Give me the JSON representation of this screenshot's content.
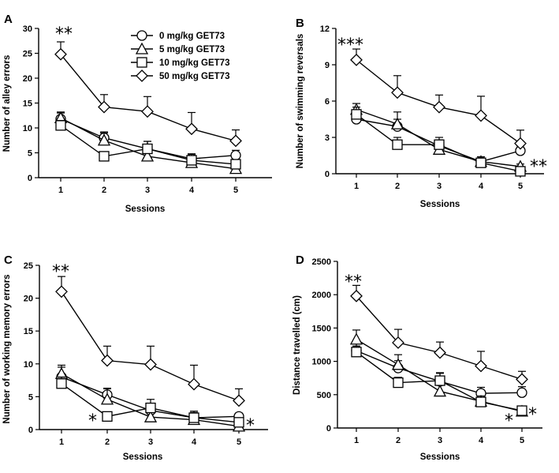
{
  "chart_data": [
    {
      "type": "line",
      "panel": "A",
      "title": "",
      "xlabel": "Sessions",
      "ylabel": "Number of alley errors",
      "categories": [
        "1",
        "2",
        "3",
        "4",
        "5"
      ],
      "ylim": [
        0,
        30
      ],
      "yticks": [
        "0",
        "5",
        "10",
        "15",
        "20",
        "25",
        "30"
      ],
      "legend": {
        "placement": "top-right",
        "entries": [
          {
            "label": "0 mg/kg GET73",
            "marker": "circle"
          },
          {
            "label": "5 mg/kg GET73",
            "marker": "triangle"
          },
          {
            "label": "10 mg/kg GET73",
            "marker": "square"
          },
          {
            "label": "50 mg/kg GET73",
            "marker": "diamond"
          }
        ]
      },
      "series": [
        {
          "name": "0 mg/kg GET73",
          "marker": "circle",
          "values": [
            11.8,
            8.0,
            5.8,
            3.8,
            4.5
          ],
          "errors": [
            1.2,
            1.2,
            1.5,
            1.0,
            1.0
          ]
        },
        {
          "name": "5 mg/kg GET73",
          "marker": "triangle",
          "values": [
            12.0,
            7.5,
            4.3,
            3.0,
            1.8
          ],
          "errors": [
            1.2,
            1.5,
            1.0,
            0.8,
            0.6
          ]
        },
        {
          "name": "10 mg/kg GET73",
          "marker": "square",
          "values": [
            10.5,
            4.3,
            5.8,
            3.5,
            2.7
          ],
          "errors": [
            1.0,
            0.9,
            1.5,
            1.2,
            0.8
          ]
        },
        {
          "name": "50 mg/kg GET73",
          "marker": "diamond",
          "values": [
            24.8,
            14.2,
            13.3,
            9.8,
            7.4
          ],
          "errors": [
            2.5,
            2.5,
            3.0,
            3.3,
            2.2
          ]
        }
      ],
      "annotations": [
        {
          "text": "**",
          "position": "above session 1"
        }
      ]
    },
    {
      "type": "line",
      "panel": "B",
      "title": "",
      "xlabel": "Sessions",
      "ylabel": "Number of swimming reversals",
      "categories": [
        "1",
        "2",
        "3",
        "4",
        "5"
      ],
      "ylim": [
        0,
        12
      ],
      "yticks": [
        "0",
        "3",
        "6",
        "9",
        "12"
      ],
      "series": [
        {
          "name": "0 mg/kg GET73",
          "marker": "circle",
          "values": [
            4.5,
            3.9,
            2.3,
            1.0,
            1.9
          ],
          "errors": [
            0.5,
            0.6,
            0.5,
            0.3,
            0.4
          ]
        },
        {
          "name": "5 mg/kg GET73",
          "marker": "triangle",
          "values": [
            5.3,
            4.1,
            2.0,
            1.0,
            0.6
          ],
          "errors": [
            0.5,
            1.0,
            0.6,
            0.4,
            0.2
          ]
        },
        {
          "name": "10 mg/kg GET73",
          "marker": "square",
          "values": [
            4.9,
            2.4,
            2.4,
            0.9,
            0.2
          ],
          "errors": [
            0.6,
            0.6,
            0.6,
            0.4,
            0.2
          ]
        },
        {
          "name": "50 mg/kg GET73",
          "marker": "diamond",
          "values": [
            9.4,
            6.7,
            5.5,
            4.8,
            2.5
          ],
          "errors": [
            0.9,
            1.4,
            1.0,
            1.6,
            1.1
          ]
        }
      ],
      "annotations": [
        {
          "text": "***",
          "position": "above session 1"
        },
        {
          "text": "**",
          "position": "right of session 5"
        }
      ]
    },
    {
      "type": "line",
      "panel": "C",
      "title": "",
      "xlabel": "Sessions",
      "ylabel": "Number of working memory errors",
      "categories": [
        "1",
        "2",
        "3",
        "4",
        "5"
      ],
      "ylim": [
        0,
        25
      ],
      "yticks": [
        "0",
        "5",
        "10",
        "15",
        "20",
        "25"
      ],
      "series": [
        {
          "name": "0 mg/kg GET73",
          "marker": "circle",
          "values": [
            8.0,
            5.3,
            2.9,
            1.8,
            2.0
          ],
          "errors": [
            1.5,
            1.0,
            1.0,
            0.8,
            0.5
          ]
        },
        {
          "name": "5 mg/kg GET73",
          "marker": "triangle",
          "values": [
            8.5,
            4.6,
            1.9,
            1.5,
            0.5
          ],
          "errors": [
            1.3,
            1.6,
            1.0,
            0.6,
            0.4
          ]
        },
        {
          "name": "10 mg/kg GET73",
          "marker": "square",
          "values": [
            7.0,
            2.0,
            3.3,
            1.8,
            1.1
          ],
          "errors": [
            1.0,
            0.5,
            1.3,
            1.0,
            0.6
          ]
        },
        {
          "name": "50 mg/kg GET73",
          "marker": "diamond",
          "values": [
            21.0,
            10.5,
            9.9,
            6.9,
            4.4
          ],
          "errors": [
            2.3,
            2.2,
            2.8,
            2.9,
            1.8
          ]
        }
      ],
      "annotations": [
        {
          "text": "**",
          "position": "above session 1"
        },
        {
          "text": "*",
          "position": "left of session 2"
        },
        {
          "text": "*",
          "position": "right of session 5"
        }
      ]
    },
    {
      "type": "line",
      "panel": "D",
      "title": "",
      "xlabel": "Sessions",
      "ylabel": "Distance travelled (cm)",
      "categories": [
        "1",
        "2",
        "3",
        "4",
        "5"
      ],
      "ylim": [
        0,
        2500
      ],
      "yticks": [
        "0",
        "500",
        "1000",
        "1500",
        "2000",
        "2500"
      ],
      "series": [
        {
          "name": "0 mg/kg GET73",
          "marker": "circle",
          "values": [
            1160,
            900,
            700,
            520,
            530
          ],
          "errors": [
            120,
            110,
            130,
            90,
            90
          ]
        },
        {
          "name": "5 mg/kg GET73",
          "marker": "triangle",
          "values": [
            1330,
            950,
            550,
            400,
            250
          ],
          "errors": [
            140,
            150,
            110,
            80,
            50
          ]
        },
        {
          "name": "10 mg/kg GET73",
          "marker": "square",
          "values": [
            1140,
            680,
            710,
            390,
            260
          ],
          "errors": [
            90,
            80,
            110,
            70,
            40
          ]
        },
        {
          "name": "50 mg/kg GET73",
          "marker": "diamond",
          "values": [
            1980,
            1280,
            1130,
            930,
            730
          ],
          "errors": [
            160,
            200,
            160,
            220,
            120
          ]
        }
      ],
      "annotations": [
        {
          "text": "**",
          "position": "above session 1"
        },
        {
          "text": "*",
          "position": "left of session 5"
        },
        {
          "text": "*",
          "position": "right of session 5"
        }
      ]
    }
  ]
}
